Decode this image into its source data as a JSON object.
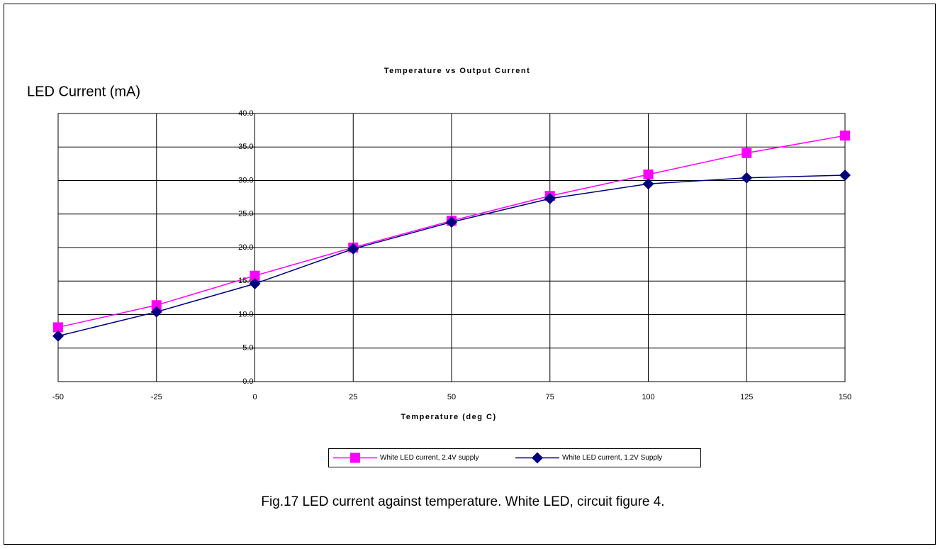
{
  "chart_data": {
    "type": "line",
    "title": "Temperature vs Output Current",
    "y_label": "LED Current (mA)",
    "x_label": "Temperature (deg C)",
    "caption": "Fig.17  LED current against temperature. White LED, circuit figure 4.",
    "x": [
      -50,
      -25,
      0,
      25,
      50,
      75,
      100,
      125,
      150
    ],
    "series": [
      {
        "name": "White LED current, 2.4V supply",
        "color": "#ff00ff",
        "marker": "square",
        "values": [
          8.1,
          11.4,
          15.8,
          20.0,
          24.0,
          27.7,
          30.9,
          34.1,
          36.7
        ]
      },
      {
        "name": "White LED current, 1.2V Supply",
        "color": "#000080",
        "marker": "diamond",
        "values": [
          6.8,
          10.4,
          14.6,
          19.8,
          23.8,
          27.3,
          29.5,
          30.4,
          30.8
        ]
      }
    ],
    "xlim": [
      -50,
      150
    ],
    "xticks": [
      -50,
      -25,
      0,
      25,
      50,
      75,
      100,
      125,
      150
    ],
    "ylim": [
      0,
      40
    ],
    "yticks": [
      {
        "value": 0,
        "label": "0.0"
      },
      {
        "value": 5,
        "label": "5.0"
      },
      {
        "value": 10,
        "label": "10.0"
      },
      {
        "value": 15,
        "label": "15.0"
      },
      {
        "value": 20,
        "label": "20.0"
      },
      {
        "value": 25,
        "label": "25.0"
      },
      {
        "value": 30,
        "label": "30.0"
      },
      {
        "value": 35,
        "label": "35.0"
      },
      {
        "value": 40,
        "label": "40.0"
      }
    ],
    "grid": true
  }
}
